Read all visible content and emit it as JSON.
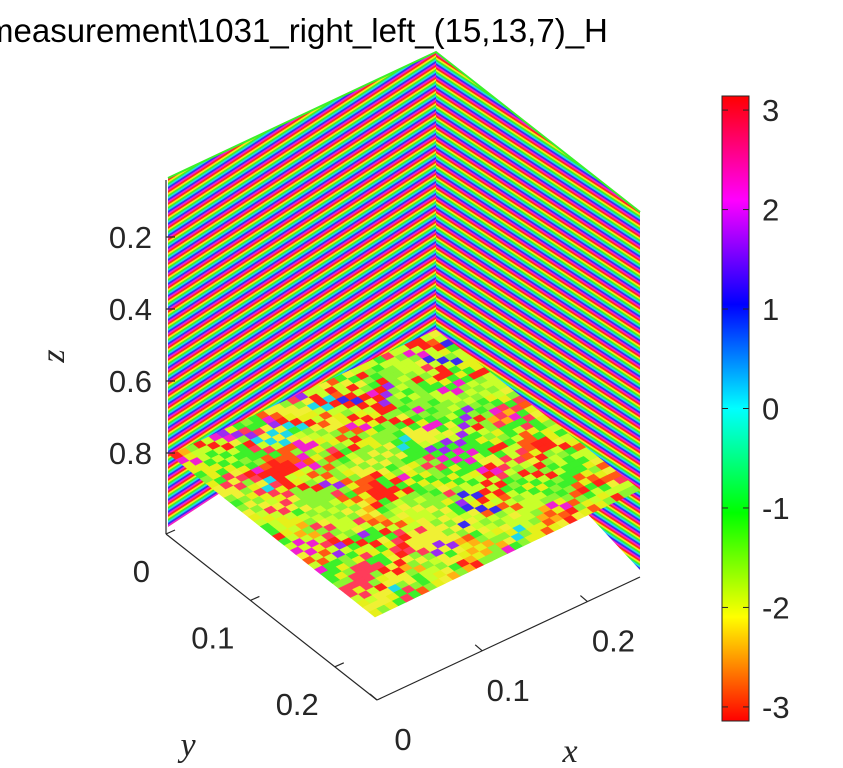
{
  "chart_data": {
    "type": "slice3d",
    "title": "measurement\\1031_right_left_(15,13,7)_H",
    "xlabel": "x",
    "ylabel": "y",
    "zlabel": "z",
    "x_ticks": [
      "0",
      "0.1",
      "0.2"
    ],
    "y_ticks": [
      "0",
      "0.1",
      "0.2"
    ],
    "z_ticks": [
      "0.2",
      "0.4",
      "0.6",
      "0.8"
    ],
    "x_tick_values": [
      0,
      0.1,
      0.2
    ],
    "y_tick_values": [
      0,
      0.1,
      0.2
    ],
    "z_tick_values": [
      0.2,
      0.4,
      0.6,
      0.8
    ],
    "xlim": [
      0,
      0.25
    ],
    "ylim": [
      0,
      0.25
    ],
    "zlim": [
      0,
      1
    ],
    "z_direction": "reverse",
    "colormap": "hsv",
    "colorbar": {
      "location": "right",
      "ticks": [
        "3",
        "2",
        "1",
        "0",
        "-1",
        "-2",
        "-3"
      ],
      "tick_values": [
        3,
        2,
        1,
        0,
        -1,
        -2,
        -3
      ],
      "range": [
        -3.14159,
        3.14159
      ]
    },
    "slices": [
      {
        "plane": "x",
        "at": 0,
        "pattern": "horizontal fringes"
      },
      {
        "plane": "y",
        "at": 0,
        "pattern": "horizontal fringes"
      },
      {
        "plane": "z",
        "at": 0.8,
        "pattern": "speckle"
      }
    ]
  }
}
